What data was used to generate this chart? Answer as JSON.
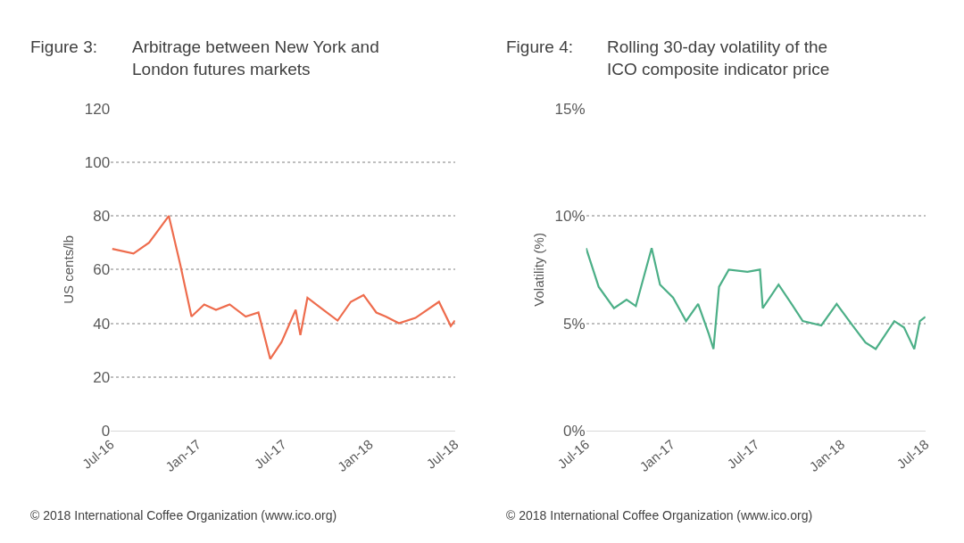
{
  "chart_data": [
    {
      "type": "line",
      "title": "Figure 3:",
      "subtitle": "Arbitrage between New York and London futures markets",
      "ylabel": "US cents/lb",
      "x": [
        "2016-07-04",
        "2016-08-18",
        "2016-09-20",
        "2016-11-01",
        "2016-11-25",
        "2016-12-19",
        "2017-01-15",
        "2017-02-09",
        "2017-03-10",
        "2017-04-13",
        "2017-05-10",
        "2017-06-04",
        "2017-06-28",
        "2017-07-28",
        "2017-08-07",
        "2017-08-22",
        "2017-09-25",
        "2017-10-25",
        "2017-11-22",
        "2017-12-19",
        "2018-01-15",
        "2018-02-04",
        "2018-03-04",
        "2018-04-08",
        "2018-05-28",
        "2018-06-22",
        "2018-07-01"
      ],
      "series": [
        {
          "color": "#ee6c4d",
          "values": [
            67.7,
            66,
            70,
            80,
            62,
            42.5,
            47,
            45,
            47,
            42.5,
            44,
            26.7,
            33,
            45,
            35.6,
            49.5,
            45,
            41,
            48,
            50.5,
            44,
            42.5,
            40,
            42,
            48,
            39,
            41
          ]
        }
      ],
      "xlim": [
        "2016-07-01",
        "2018-07-01"
      ],
      "xticks": [
        {
          "value": "2016-07-01",
          "label": "Jul-16"
        },
        {
          "value": "2017-01-01",
          "label": "Jan-17"
        },
        {
          "value": "2017-07-01",
          "label": "Jul-17"
        },
        {
          "value": "2018-01-01",
          "label": "Jan-18"
        },
        {
          "value": "2018-07-01",
          "label": "Jul-18"
        }
      ],
      "ylim": [
        0,
        120
      ],
      "yticks": [
        0,
        20,
        40,
        60,
        80,
        100,
        120
      ],
      "grid": "y",
      "line_style": "solid",
      "marker": "none",
      "annotations": [
        "© 2018 International Coffee Organization (www.ico.org)"
      ]
    },
    {
      "type": "line",
      "title": "Figure 4:",
      "subtitle": "Rolling 30-day volatility of the ICO composite indicator price",
      "ylabel": "Volatility (%)",
      "x": [
        "2016-07-01",
        "2016-07-28",
        "2016-08-30",
        "2016-09-26",
        "2016-10-16",
        "2016-11-19",
        "2016-12-07",
        "2017-01-04",
        "2017-02-01",
        "2017-02-27",
        "2017-03-22",
        "2017-04-01",
        "2017-04-13",
        "2017-05-04",
        "2017-06-13",
        "2017-07-10",
        "2017-07-16",
        "2017-08-19",
        "2017-09-16",
        "2017-10-10",
        "2017-11-19",
        "2017-12-22",
        "2018-01-25",
        "2018-02-22",
        "2018-03-16",
        "2018-04-25",
        "2018-05-16",
        "2018-06-07",
        "2018-06-19",
        "2018-07-01"
      ],
      "series": [
        {
          "color": "#4caf87",
          "values": [
            8.5,
            6.7,
            5.7,
            6.1,
            5.8,
            8.5,
            6.8,
            6.2,
            5.1,
            5.9,
            4.5,
            3.8,
            6.7,
            7.5,
            7.4,
            7.5,
            5.7,
            6.8,
            5.9,
            5.1,
            4.9,
            5.9,
            4.9,
            4.1,
            3.8,
            5.1,
            4.8,
            3.8,
            5.1,
            5.3
          ]
        }
      ],
      "xlim": [
        "2016-07-01",
        "2018-07-01"
      ],
      "xticks": [
        {
          "value": "2016-07-01",
          "label": "Jul-16"
        },
        {
          "value": "2017-01-01",
          "label": "Jan-17"
        },
        {
          "value": "2017-07-01",
          "label": "Jul-17"
        },
        {
          "value": "2018-01-01",
          "label": "Jan-18"
        },
        {
          "value": "2018-07-01",
          "label": "Jul-18"
        }
      ],
      "ylim": [
        0,
        15
      ],
      "yticks": [
        {
          "value": 0,
          "label": "0%"
        },
        {
          "value": 5,
          "label": "5%"
        },
        {
          "value": 10,
          "label": "10%"
        },
        {
          "value": 15,
          "label": "15%"
        }
      ],
      "grid": "y",
      "line_style": "solid",
      "marker": "none",
      "annotations": [
        "© 2018 International Coffee Organization (www.ico.org)"
      ]
    }
  ]
}
